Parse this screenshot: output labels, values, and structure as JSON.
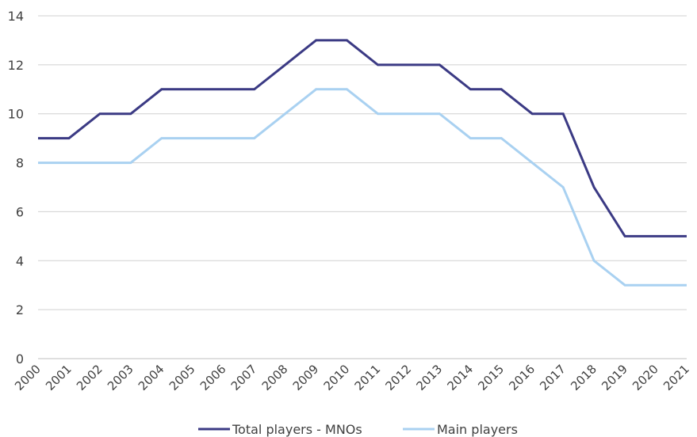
{
  "chart_data": {
    "type": "line",
    "x": [
      "2000",
      "2001",
      "2002",
      "2003",
      "2004",
      "2005",
      "2006",
      "2007",
      "2008",
      "2009",
      "2010",
      "2011",
      "2012",
      "2013",
      "2014",
      "2015",
      "2016",
      "2017",
      "2018",
      "2019",
      "2020",
      "2021"
    ],
    "yticks": [
      "0",
      "2",
      "4",
      "6",
      "8",
      "10",
      "12",
      "14"
    ],
    "ylim": [
      0,
      14
    ],
    "grid": true,
    "legend_position": "bottom",
    "series": [
      {
        "name": "Total players - MNOs",
        "color": "#3b3a84",
        "values": [
          9,
          9,
          10,
          10,
          11,
          11,
          11,
          11,
          12,
          13,
          13,
          12,
          12,
          12,
          11,
          11,
          10,
          10,
          7,
          5,
          5,
          5
        ]
      },
      {
        "name": "Main players",
        "color": "#a9d1f1",
        "values": [
          8,
          8,
          8,
          8,
          9,
          9,
          9,
          9,
          10,
          11,
          11,
          10,
          10,
          10,
          9,
          9,
          8,
          7,
          4,
          3,
          3,
          3
        ]
      }
    ]
  }
}
